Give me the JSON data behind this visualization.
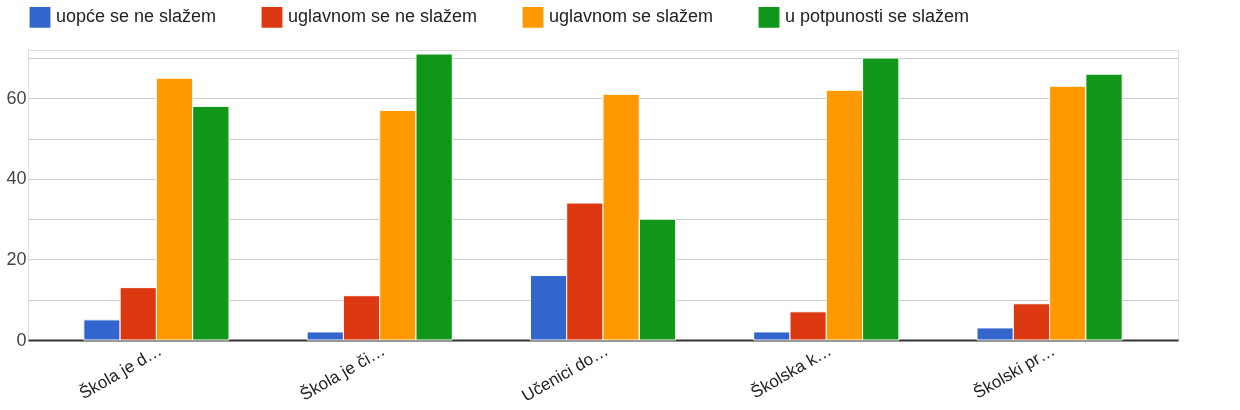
{
  "chart_data": {
    "type": "bar",
    "categories": [
      "Škola je d…",
      "Škola je či…",
      "Učenici do…",
      "Školska k…",
      "Školski pr…"
    ],
    "series": [
      {
        "name": "uopće se ne slažem",
        "color": "#3366cc",
        "values": [
          5,
          2,
          16,
          2,
          3
        ]
      },
      {
        "name": "uglavnom se ne slažem",
        "color": "#dc3912",
        "values": [
          13,
          11,
          34,
          7,
          9
        ]
      },
      {
        "name": "uglavnom se slažem",
        "color": "#ff9900",
        "values": [
          65,
          57,
          61,
          62,
          63
        ]
      },
      {
        "name": "u potpunosti se slažem",
        "color": "#109618",
        "values": [
          58,
          71,
          30,
          70,
          66
        ]
      }
    ],
    "ylim": [
      0,
      72
    ],
    "yticks": [
      0,
      {
        "value": 10,
        "label": null
      },
      20,
      {
        "value": 30,
        "label": null
      },
      40,
      {
        "value": 50,
        "label": null
      },
      60,
      {
        "value": 70,
        "label": null
      }
    ],
    "grid": "y",
    "legend": "top"
  }
}
